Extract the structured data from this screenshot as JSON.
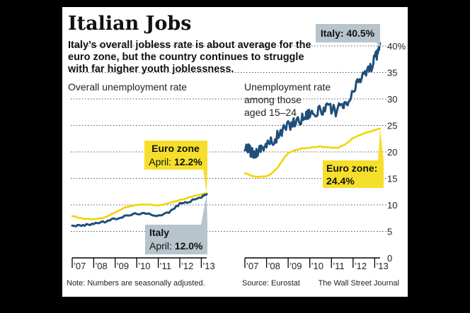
{
  "header": {
    "title": "Italian Jobs",
    "subtitle_lines": [
      "Italy’s overall jobless rate is about average for the",
      "euro zone, but the country continues to struggle",
      "with far higher youth joblessness."
    ]
  },
  "footer": {
    "note": "Note: Numbers are seasonally adjusted.",
    "source": "Source: Eurostat",
    "credit": "The Wall Street Journal"
  },
  "colors": {
    "italy": "#1f4e7a",
    "euro_zone": "#f2d400",
    "label_yellow": "#f5df2a",
    "label_gray": "#b7c4cc",
    "grid": "#555555",
    "frame": "#000000"
  },
  "chart_data": [
    {
      "type": "line",
      "title": "Overall unemployment rate",
      "ylim": [
        0,
        40
      ],
      "x_tick_labels": [
        "’07",
        "’08",
        "’09",
        "’10",
        "’11",
        "’12",
        "’13"
      ],
      "series": [
        {
          "name": "Euro zone",
          "color": "#f2d400",
          "x": [
            2007.0,
            2007.5,
            2008.0,
            2008.5,
            2009.0,
            2009.5,
            2010.0,
            2010.5,
            2011.0,
            2011.5,
            2012.0,
            2012.5,
            2013.0,
            2013.25
          ],
          "values": [
            7.9,
            7.4,
            7.3,
            7.6,
            8.6,
            9.6,
            10.0,
            10.1,
            9.9,
            10.3,
            10.9,
            11.5,
            12.0,
            12.2
          ]
        },
        {
          "name": "Italy",
          "color": "#1f4e7a",
          "x": [
            2007.0,
            2007.5,
            2008.0,
            2008.5,
            2009.0,
            2009.5,
            2010.0,
            2010.5,
            2011.0,
            2011.5,
            2012.0,
            2012.5,
            2013.0,
            2013.25
          ],
          "values": [
            6.1,
            6.1,
            6.5,
            6.8,
            7.4,
            7.9,
            8.4,
            8.3,
            8.0,
            8.6,
            10.2,
            10.7,
            11.5,
            12.0
          ]
        }
      ],
      "annotations": [
        {
          "series": "Euro zone",
          "lines": [
            "Euro zone",
            "April: ",
            "12.2%"
          ]
        },
        {
          "series": "Italy",
          "lines": [
            "Italy",
            "April: ",
            "12.0%"
          ]
        }
      ]
    },
    {
      "type": "line",
      "title": "Unemployment rate among those aged 15–24",
      "title_lines": [
        "Unemployment rate",
        "among those",
        "aged 15–24"
      ],
      "ylim": [
        0,
        40
      ],
      "y_tick_labels": [
        "0",
        "5",
        "10",
        "15",
        "20",
        "25",
        "30",
        "35",
        "40%"
      ],
      "x_tick_labels": [
        "’07",
        "’08",
        "’09",
        "’10",
        "’11",
        "’12",
        "’13"
      ],
      "series": [
        {
          "name": "Euro zone",
          "color": "#f2d400",
          "x": [
            2007.0,
            2007.3,
            2007.6,
            2008.0,
            2008.2,
            2008.5,
            2008.8,
            2009.0,
            2009.3,
            2009.6,
            2010.0,
            2010.5,
            2011.0,
            2011.3,
            2011.6,
            2012.0,
            2012.5,
            2013.0,
            2013.25
          ],
          "values": [
            16.0,
            15.5,
            15.3,
            15.4,
            15.8,
            17.0,
            18.8,
            19.8,
            20.3,
            20.6,
            20.8,
            21.0,
            20.8,
            20.8,
            21.3,
            22.6,
            23.5,
            24.1,
            24.4
          ]
        },
        {
          "name": "Italy",
          "color": "#1f4e7a",
          "x": [
            2007.0,
            2007.2,
            2007.4,
            2007.6,
            2007.8,
            2008.0,
            2008.3,
            2008.6,
            2008.9,
            2009.2,
            2009.5,
            2009.8,
            2010.0,
            2010.3,
            2010.6,
            2010.9,
            2011.2,
            2011.5,
            2011.7,
            2012.0,
            2012.3,
            2012.6,
            2012.9,
            2013.1,
            2013.25
          ],
          "values": [
            20.3,
            20.5,
            19.5,
            20.2,
            21.0,
            21.3,
            22.0,
            23.4,
            24.6,
            25.5,
            26.0,
            26.8,
            27.5,
            27.3,
            28.0,
            28.2,
            27.8,
            28.4,
            28.8,
            31.0,
            33.8,
            35.0,
            36.4,
            38.4,
            40.5
          ]
        }
      ],
      "annotations": [
        {
          "series": "Italy",
          "lines": [
            "Italy: 40.5%"
          ]
        },
        {
          "series": "Euro zone",
          "lines": [
            "Euro zone:",
            "24.4%"
          ]
        }
      ]
    }
  ]
}
